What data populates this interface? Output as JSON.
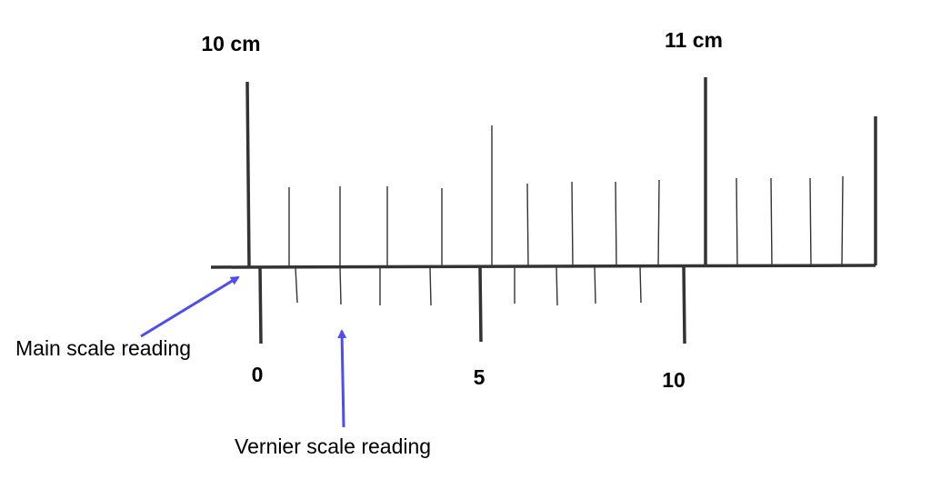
{
  "main_scale": {
    "labels": [
      "10 cm",
      "11 cm"
    ]
  },
  "vernier_scale": {
    "labels": [
      "0",
      "5",
      "10"
    ]
  },
  "annotations": [
    "Main scale reading",
    "Vernier scale reading"
  ]
}
